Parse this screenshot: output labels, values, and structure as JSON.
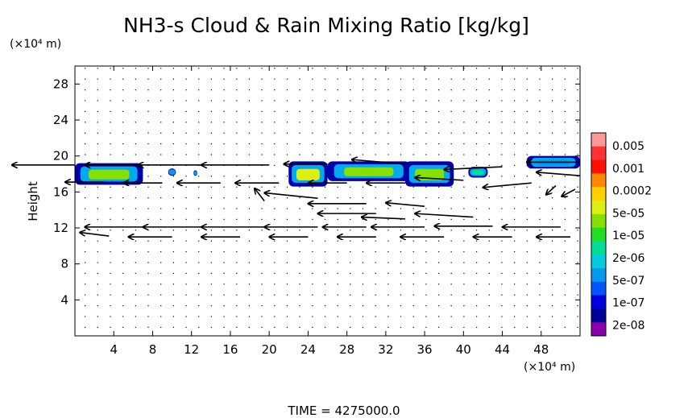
{
  "chart_data": {
    "type": "heatmap",
    "title": "NH3-s Cloud & Rain Mixing Ratio [kg/kg]",
    "ylabel": "Height",
    "y_unit": "(×10⁴ m)",
    "x_unit": "(×10⁴ m)",
    "xlim": [
      0,
      52
    ],
    "ylim": [
      0,
      30
    ],
    "x_ticks": [
      "4",
      "8",
      "12",
      "16",
      "20",
      "24",
      "28",
      "32",
      "36",
      "40",
      "44",
      "48"
    ],
    "y_ticks": [
      "4",
      "8",
      "12",
      "16",
      "20",
      "24",
      "28"
    ],
    "colorbar": {
      "labels": [
        "0.005",
        "0.001",
        "0.0002",
        "5e-05",
        "1e-05",
        "2e-06",
        "5e-07",
        "1e-07",
        "2e-08"
      ],
      "colors": [
        "#ff9999",
        "#ff3333",
        "#ff1100",
        "#ff8800",
        "#ffd000",
        "#ddee11",
        "#88e000",
        "#22dd22",
        "#00dd99",
        "#00ccdd",
        "#0099ee",
        "#0055ff",
        "#0000dd",
        "#000099",
        "#8800aa"
      ]
    },
    "cloud_regions": [
      {
        "x": [
          0,
          7
        ],
        "y": [
          16.8,
          19.2
        ],
        "peak": "1e-05"
      },
      {
        "x": [
          9.6,
          10.4
        ],
        "y": [
          17.8,
          18.6
        ],
        "peak": "2e-08"
      },
      {
        "x": [
          12.2,
          12.6
        ],
        "y": [
          17.8,
          18.4
        ],
        "peak": "2e-08"
      },
      {
        "x": [
          22,
          26
        ],
        "y": [
          16.6,
          19.4
        ],
        "peak": "5e-05"
      },
      {
        "x": [
          26,
          34.5
        ],
        "y": [
          17.2,
          19.4
        ],
        "peak": "1e-05"
      },
      {
        "x": [
          34,
          39
        ],
        "y": [
          16.6,
          19.4
        ],
        "peak": "1e-05"
      },
      {
        "x": [
          40.5,
          42.5
        ],
        "y": [
          17.6,
          18.8
        ],
        "peak": "5e-07"
      },
      {
        "x": [
          46.5,
          52
        ],
        "y": [
          18.6,
          20
        ],
        "peak": "2e-08"
      }
    ],
    "wind_arrows": [
      {
        "x": 0,
        "y": 19,
        "u": 6.5,
        "v": 0
      },
      {
        "x": 7,
        "y": 19,
        "u": 6.0,
        "v": 0
      },
      {
        "x": 13,
        "y": 19,
        "u": 6.5,
        "v": 0
      },
      {
        "x": 20,
        "y": 19,
        "u": 7.0,
        "v": 0
      },
      {
        "x": 26,
        "y": 19.1,
        "u": 4.5,
        "v": 0
      },
      {
        "x": 34,
        "y": 19.1,
        "u": 5.5,
        "v": 0.5
      },
      {
        "x": 44,
        "y": 18.8,
        "u": 6.0,
        "v": -0.3
      },
      {
        "x": 52,
        "y": 19.3,
        "u": 5.5,
        "v": 0
      },
      {
        "x": 3,
        "y": 17.1,
        "u": 4.0,
        "v": 0
      },
      {
        "x": 9,
        "y": 17.0,
        "u": 4.0,
        "v": 0
      },
      {
        "x": 15,
        "y": 17.0,
        "u": 4.5,
        "v": 0
      },
      {
        "x": 21,
        "y": 17.0,
        "u": 4.5,
        "v": 0
      },
      {
        "x": 28,
        "y": 17.0,
        "u": 4.0,
        "v": 0
      },
      {
        "x": 34,
        "y": 17.0,
        "u": 4.0,
        "v": 0
      },
      {
        "x": 40,
        "y": 17.3,
        "u": 5.0,
        "v": 0.3
      },
      {
        "x": 47,
        "y": 17.0,
        "u": 5.0,
        "v": -0.5
      },
      {
        "x": 52,
        "y": 17.8,
        "u": 4.5,
        "v": 0.4
      },
      {
        "x": 30,
        "y": 14.7,
        "u": 6.0,
        "v": 0
      },
      {
        "x": 36,
        "y": 14.4,
        "u": 4.0,
        "v": 0.4
      },
      {
        "x": 31,
        "y": 13.6,
        "u": 6.0,
        "v": 0
      },
      {
        "x": 34,
        "y": 13.0,
        "u": 4.5,
        "v": 0.2
      },
      {
        "x": 41,
        "y": 13.2,
        "u": 6.0,
        "v": 0.4
      },
      {
        "x": 25,
        "y": 15.3,
        "u": 5.5,
        "v": 0.6
      },
      {
        "x": 7,
        "y": 12.1,
        "u": 6.0,
        "v": 0
      },
      {
        "x": 13,
        "y": 12.1,
        "u": 6.0,
        "v": 0
      },
      {
        "x": 19.5,
        "y": 12.1,
        "u": 6.5,
        "v": 0
      },
      {
        "x": 25,
        "y": 12.1,
        "u": 5.5,
        "v": 0
      },
      {
        "x": 30,
        "y": 12.1,
        "u": 4.5,
        "v": 0
      },
      {
        "x": 36,
        "y": 12.1,
        "u": 5.5,
        "v": 0
      },
      {
        "x": 43,
        "y": 12.2,
        "u": 6.0,
        "v": 0
      },
      {
        "x": 50,
        "y": 12.1,
        "u": 6.0,
        "v": 0
      },
      {
        "x": 3.5,
        "y": 11.1,
        "u": 3.0,
        "v": 0.4
      },
      {
        "x": 10,
        "y": 11.0,
        "u": 4.5,
        "v": 0
      },
      {
        "x": 17,
        "y": 11.0,
        "u": 4.0,
        "v": 0
      },
      {
        "x": 24,
        "y": 11.0,
        "u": 4.0,
        "v": 0
      },
      {
        "x": 31,
        "y": 11.0,
        "u": 4.0,
        "v": 0
      },
      {
        "x": 38,
        "y": 11.0,
        "u": 4.5,
        "v": 0
      },
      {
        "x": 45,
        "y": 11.0,
        "u": 4.0,
        "v": 0
      },
      {
        "x": 51,
        "y": 11.0,
        "u": 3.5,
        "v": 0
      },
      {
        "x": 19.5,
        "y": 15.0,
        "u": 1.0,
        "v": 1.4
      },
      {
        "x": 49.5,
        "y": 16.7,
        "u": 1.0,
        "v": -1.0
      },
      {
        "x": 51.5,
        "y": 16.3,
        "u": 1.4,
        "v": -0.8
      }
    ]
  },
  "footer": {
    "time_label": "TIME = 4275000.0"
  }
}
